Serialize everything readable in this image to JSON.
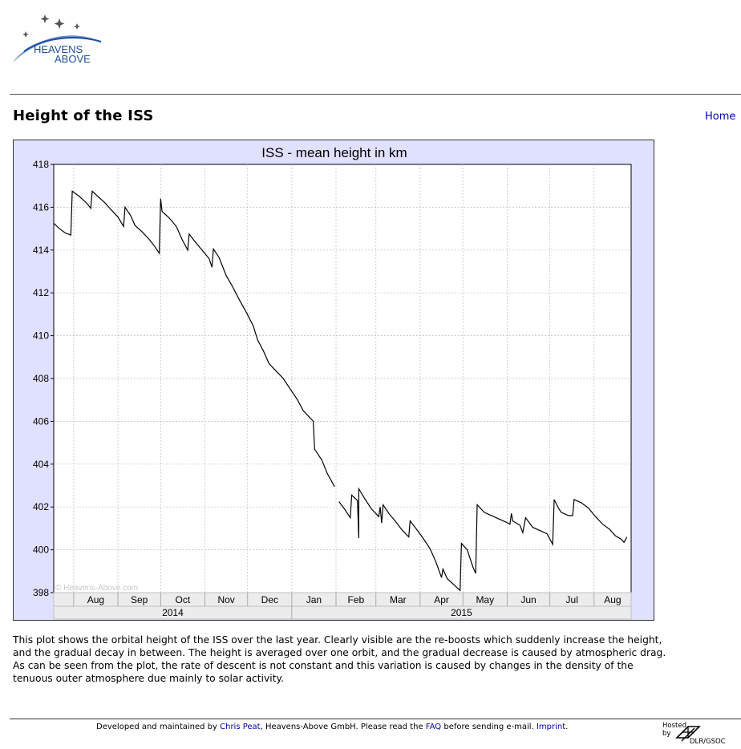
{
  "header": {
    "logo_line1": "HEAVENS",
    "logo_line2": "ABOVE"
  },
  "page": {
    "title": "Height of the ISS",
    "home_link": "Home"
  },
  "chart_data": {
    "type": "line",
    "title": "ISS - mean height in km",
    "xlabel": "",
    "ylabel": "",
    "ylim": [
      398,
      418
    ],
    "y_ticks": [
      398,
      400,
      402,
      404,
      406,
      408,
      410,
      412,
      414,
      416,
      418
    ],
    "x_range": [
      "2014-07-18",
      "2015-08-27"
    ],
    "month_ticks": [
      "Aug",
      "Sep",
      "Oct",
      "Nov",
      "Dec",
      "Jan",
      "Feb",
      "Mar",
      "Apr",
      "May",
      "Jun",
      "Jul",
      "Aug"
    ],
    "year_labels": [
      "2014",
      "2015"
    ],
    "watermark": "© Heavens-Above.com",
    "grid": true,
    "series": [
      {
        "points": [
          [
            "2014-07-18",
            415.25
          ],
          [
            "2014-07-22",
            415.0
          ],
          [
            "2014-07-26",
            414.8
          ],
          [
            "2014-07-30",
            414.7
          ],
          [
            "2014-07-31",
            416.75
          ],
          [
            "2014-08-05",
            416.5
          ],
          [
            "2014-08-10",
            416.2
          ],
          [
            "2014-08-13",
            415.95
          ],
          [
            "2014-08-14",
            416.75
          ],
          [
            "2014-08-18",
            416.5
          ],
          [
            "2014-08-23",
            416.2
          ],
          [
            "2014-08-27",
            415.9
          ],
          [
            "2014-09-01",
            415.55
          ],
          [
            "2014-09-05",
            415.1
          ],
          [
            "2014-09-06",
            416.0
          ],
          [
            "2014-09-10",
            415.6
          ],
          [
            "2014-09-13",
            415.15
          ],
          [
            "2014-09-18",
            414.85
          ],
          [
            "2014-09-23",
            414.5
          ],
          [
            "2014-09-27",
            414.15
          ],
          [
            "2014-09-30",
            413.85
          ],
          [
            "2014-10-01",
            416.4
          ],
          [
            "2014-10-02",
            415.8
          ],
          [
            "2014-10-07",
            415.5
          ],
          [
            "2014-10-12",
            415.1
          ],
          [
            "2014-10-16",
            414.5
          ],
          [
            "2014-10-20",
            414.0
          ],
          [
            "2014-10-21",
            414.75
          ],
          [
            "2014-10-25",
            414.4
          ],
          [
            "2014-10-30",
            414.0
          ],
          [
            "2014-11-04",
            413.6
          ],
          [
            "2014-11-06",
            413.2
          ],
          [
            "2014-11-07",
            414.05
          ],
          [
            "2014-11-11",
            413.65
          ],
          [
            "2014-11-16",
            412.8
          ],
          [
            "2014-11-20",
            412.35
          ],
          [
            "2014-11-25",
            411.7
          ],
          [
            "2014-11-30",
            411.1
          ],
          [
            "2014-12-05",
            410.45
          ],
          [
            "2014-12-08",
            409.8
          ],
          [
            "2014-12-12",
            409.3
          ],
          [
            "2014-12-16",
            408.7
          ],
          [
            "2014-12-21",
            408.35
          ],
          [
            "2014-12-26",
            408.0
          ],
          [
            "2014-12-31",
            407.5
          ],
          [
            "2015-01-05",
            407.0
          ],
          [
            "2015-01-09",
            406.5
          ],
          [
            "2015-01-14",
            406.15
          ],
          [
            "2015-01-16",
            406.0
          ],
          [
            "2015-01-17",
            404.7
          ],
          [
            "2015-01-22",
            404.2
          ],
          [
            "2015-01-26",
            403.55
          ],
          [
            "2015-01-31",
            402.95
          ],
          [
            "2015-02-03",
            402.25
          ],
          [
            "2015-02-07",
            401.9
          ],
          [
            "2015-02-11",
            401.5
          ],
          [
            "2015-02-12",
            402.55
          ],
          [
            "2015-02-16",
            402.3
          ],
          [
            "2015-02-17",
            400.55
          ],
          [
            "2015-02-17",
            402.85
          ],
          [
            "2015-02-21",
            402.4
          ],
          [
            "2015-02-26",
            401.9
          ],
          [
            "2015-03-03",
            401.55
          ],
          [
            "2015-03-04",
            402.0
          ],
          [
            "2015-03-05",
            401.25
          ],
          [
            "2015-03-06",
            402.1
          ],
          [
            "2015-03-10",
            401.7
          ],
          [
            "2015-03-15",
            401.3
          ],
          [
            "2015-03-19",
            400.95
          ],
          [
            "2015-03-24",
            400.6
          ],
          [
            "2015-03-25",
            401.35
          ],
          [
            "2015-03-29",
            401.0
          ],
          [
            "2015-04-03",
            400.55
          ],
          [
            "2015-04-08",
            400.05
          ],
          [
            "2015-04-12",
            399.45
          ],
          [
            "2015-04-16",
            398.7
          ],
          [
            "2015-04-17",
            399.1
          ],
          [
            "2015-04-20",
            398.65
          ],
          [
            "2015-04-25",
            398.35
          ],
          [
            "2015-04-29",
            398.1
          ],
          [
            "2015-04-30",
            400.3
          ],
          [
            "2015-05-04",
            400.0
          ],
          [
            "2015-05-08",
            399.2
          ],
          [
            "2015-05-10",
            398.9
          ],
          [
            "2015-05-11",
            402.1
          ],
          [
            "2015-05-16",
            401.75
          ],
          [
            "2015-05-21",
            401.6
          ],
          [
            "2015-05-26",
            401.45
          ],
          [
            "2015-05-31",
            401.3
          ],
          [
            "2015-06-03",
            401.2
          ],
          [
            "2015-06-04",
            401.7
          ],
          [
            "2015-06-05",
            401.35
          ],
          [
            "2015-06-10",
            401.15
          ],
          [
            "2015-06-12",
            400.8
          ],
          [
            "2015-06-14",
            401.5
          ],
          [
            "2015-06-19",
            401.05
          ],
          [
            "2015-06-24",
            400.9
          ],
          [
            "2015-06-29",
            400.75
          ],
          [
            "2015-07-03",
            400.25
          ],
          [
            "2015-07-04",
            402.35
          ],
          [
            "2015-07-07",
            401.95
          ],
          [
            "2015-07-09",
            401.75
          ],
          [
            "2015-07-14",
            401.6
          ],
          [
            "2015-07-17",
            401.6
          ],
          [
            "2015-07-18",
            402.35
          ],
          [
            "2015-07-23",
            402.2
          ],
          [
            "2015-07-28",
            401.95
          ],
          [
            "2015-08-02",
            401.55
          ],
          [
            "2015-08-07",
            401.2
          ],
          [
            "2015-08-12",
            400.95
          ],
          [
            "2015-08-16",
            400.65
          ],
          [
            "2015-08-20",
            400.5
          ],
          [
            "2015-08-22",
            400.35
          ],
          [
            "2015-08-24",
            400.6
          ]
        ]
      }
    ]
  },
  "description": "This plot shows the orbital height of the ISS over the last year. Clearly visible are the re-boosts which suddenly increase the height, and the gradual decay in between. The height is averaged over one orbit, and the gradual decrease is caused by atmospheric drag. As can be seen from the plot, the rate of descent is not constant and this variation is caused by changes in the density of the tenuous outer atmosphere due mainly to solar activity.",
  "footer": {
    "text1": "Developed and maintained by ",
    "author_link": "Chris Peat",
    "text2": ", Heavens-Above GmbH. Please read the ",
    "faq_link": "FAQ",
    "text3": " before sending e-mail. ",
    "imprint_link": "Imprint",
    "text4": ".",
    "hosted_line1": "Hosted",
    "hosted_line2": "by",
    "hosted_by": "DLR/GSOC"
  }
}
